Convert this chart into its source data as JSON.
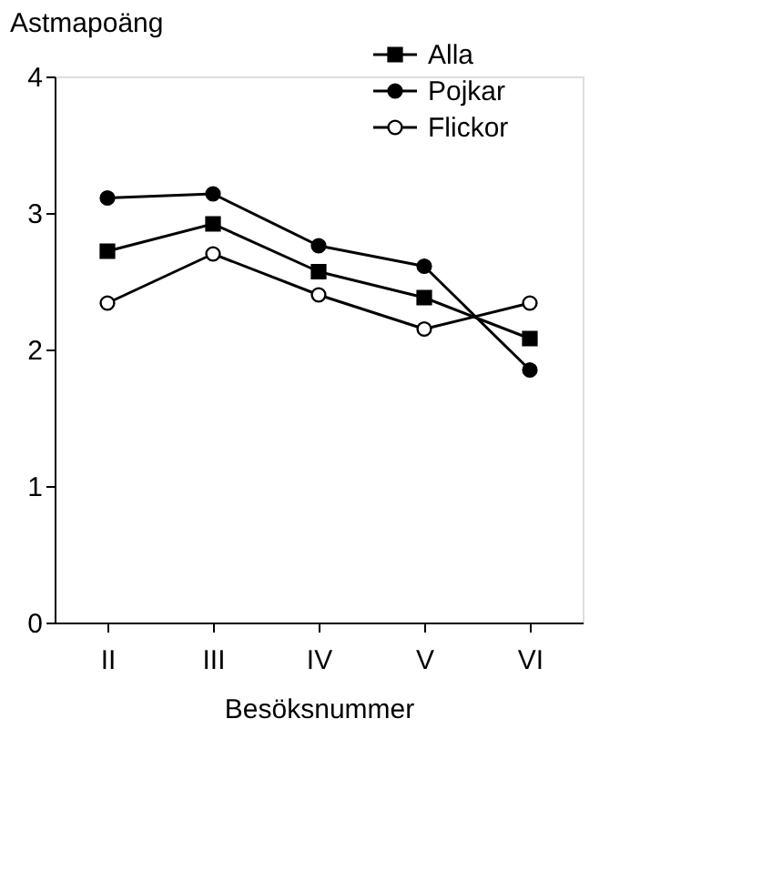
{
  "chart_data": {
    "type": "line",
    "xlabel": "Besöksnummer",
    "ylabel": "Astmapoäng",
    "categories": [
      "II",
      "III",
      "IV",
      "V",
      "VI"
    ],
    "series": [
      {
        "name": "Alla",
        "color": "#000000",
        "marker": "square",
        "values": [
          2.72,
          2.92,
          2.57,
          2.38,
          2.08
        ]
      },
      {
        "name": "Pojkar",
        "color": "#000000",
        "marker": "circle",
        "values": [
          3.11,
          3.14,
          2.76,
          2.61,
          1.85
        ]
      },
      {
        "name": "Flickor",
        "color": "#000000",
        "marker": "circle",
        "colors": [
          "#ffffff",
          "#ffffff",
          "#ffffff",
          "#ffffff",
          "#ffffff"
        ],
        "values": [
          2.34,
          2.7,
          2.4,
          2.15,
          2.34
        ]
      }
    ],
    "ylim": [
      0,
      4
    ],
    "yticks": [
      0,
      1,
      2,
      3,
      4
    ],
    "grid": false,
    "legend": "top right",
    "line_style": "solid"
  }
}
